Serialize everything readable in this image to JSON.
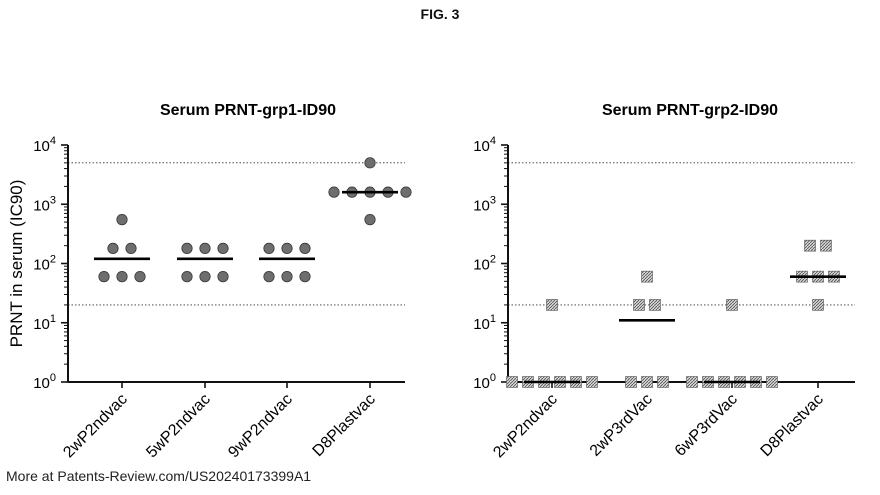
{
  "figure_title": "FIG. 3",
  "watermark": "More at Patents-Review.com/US20240173399A1",
  "chart_data": [
    {
      "type": "scatter",
      "title": "Serum PRNT-grp1-ID90",
      "ylabel": "PRNT in serum (IC90)",
      "xlabel": "",
      "y_scale": "log",
      "ylim": [
        1,
        10000
      ],
      "y_ticks": [
        {
          "base": "10",
          "exp": "0"
        },
        {
          "base": "10",
          "exp": "1"
        },
        {
          "base": "10",
          "exp": "2"
        },
        {
          "base": "10",
          "exp": "3"
        },
        {
          "base": "10",
          "exp": "4"
        }
      ],
      "marker": "circle",
      "reference_lines": [
        20,
        5000
      ],
      "categories": [
        "2wP2ndvac",
        "5wP2ndvac",
        "9wP2ndvac",
        "D8Plastvac"
      ],
      "points": [
        [
          550,
          180,
          180,
          60,
          60,
          60
        ],
        [
          180,
          180,
          180,
          60,
          60,
          60
        ],
        [
          180,
          180,
          180,
          60,
          60,
          60
        ],
        [
          5000,
          1600,
          1600,
          1600,
          1600,
          1600,
          550
        ]
      ],
      "medians": [
        120,
        120,
        120,
        1600
      ]
    },
    {
      "type": "scatter",
      "title": "Serum PRNT-grp2-ID90",
      "ylabel": "",
      "xlabel": "",
      "y_scale": "log",
      "ylim": [
        1,
        10000
      ],
      "y_ticks": [
        {
          "base": "10",
          "exp": "0"
        },
        {
          "base": "10",
          "exp": "1"
        },
        {
          "base": "10",
          "exp": "2"
        },
        {
          "base": "10",
          "exp": "3"
        },
        {
          "base": "10",
          "exp": "4"
        }
      ],
      "marker": "square",
      "reference_lines": [
        20,
        5000
      ],
      "categories": [
        "2wP2ndvac",
        "2wP3rdVac",
        "6wP3rdVac",
        "D8Plastvac"
      ],
      "points": [
        [
          20,
          1,
          1,
          1,
          1,
          1,
          1
        ],
        [
          60,
          20,
          20,
          1,
          1,
          1
        ],
        [
          20,
          1,
          1,
          1,
          1,
          1,
          1
        ],
        [
          200,
          200,
          60,
          60,
          60,
          20
        ]
      ],
      "medians": [
        1,
        11,
        1,
        60
      ]
    }
  ]
}
